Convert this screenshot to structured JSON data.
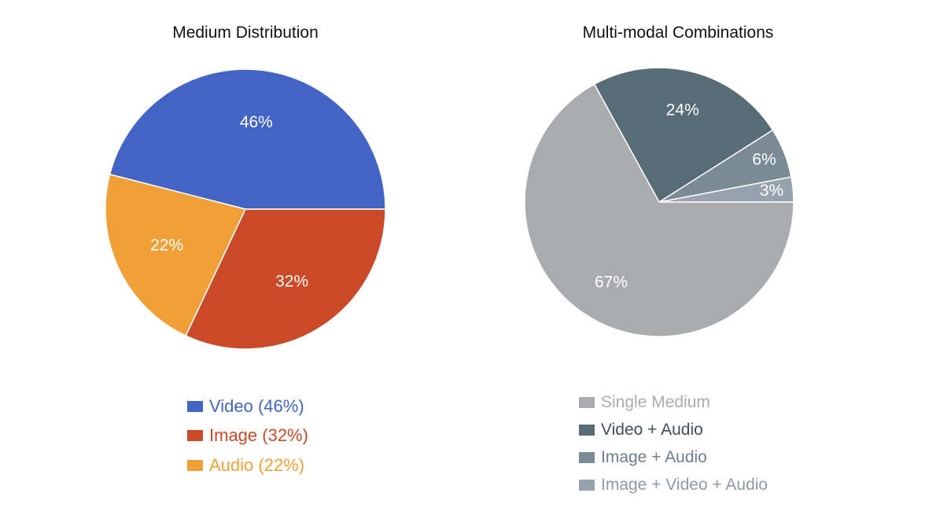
{
  "chart_data": [
    {
      "type": "pie",
      "title": "Medium Distribution",
      "slices": [
        {
          "label": "Video",
          "legend": "Video (46%)",
          "value": 46,
          "display": "46%",
          "color": "#4164C6"
        },
        {
          "label": "Audio",
          "legend": "Audio (22%)",
          "value": 22,
          "display": "22%",
          "color": "#F0A037"
        },
        {
          "label": "Image",
          "legend": "Image (32%)",
          "value": 32,
          "display": "32%",
          "color": "#CA4A27"
        }
      ],
      "legend_order": [
        0,
        2,
        1
      ],
      "legend_placement": "bottom"
    },
    {
      "type": "pie",
      "title": "Multi-modal Combinations",
      "slices": [
        {
          "label": "Image + Video + Audio",
          "legend": "Image + Video + Audio",
          "value": 3,
          "display": "3%",
          "color": "#96A3AD"
        },
        {
          "label": "Image + Audio",
          "legend": "Image + Audio",
          "value": 6,
          "display": "6%",
          "color": "#7A8B96"
        },
        {
          "label": "Video + Audio",
          "legend": "Video + Audio",
          "value": 24,
          "display": "24%",
          "color": "#586C78"
        },
        {
          "label": "Single Medium",
          "legend": "Single Medium",
          "value": 67,
          "display": "67%",
          "color": "#A9ABAE"
        }
      ],
      "legend_order": [
        3,
        2,
        1,
        0
      ],
      "legend_text_colors": [
        "#A9ABAE",
        "#3F4F5A",
        "#6E7F8A",
        "#8E9BA5"
      ],
      "legend_placement": "bottom"
    }
  ]
}
